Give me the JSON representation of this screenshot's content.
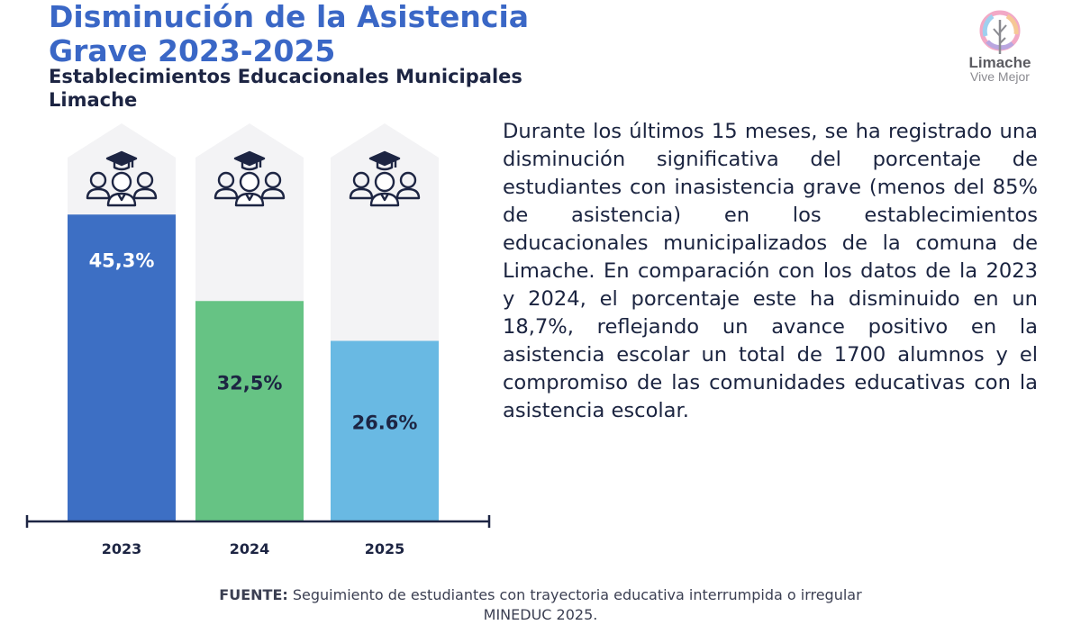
{
  "header": {
    "title_line1": "Disminución de la Asistencia",
    "title_line2": "Grave 2023-2025",
    "subtitle_line1": "Establecimientos Educacionales Municipales",
    "subtitle_line2": "Limache"
  },
  "logo": {
    "name": "Limache",
    "tagline": "Vive Mejor"
  },
  "colors": {
    "title": "#3a67c6",
    "bar_2023": "#3d6fc4",
    "bar_2024": "#66c384",
    "bar_2025": "#69b9e3",
    "arrow_bg": "#f3f3f5",
    "axis": "#1d2543"
  },
  "chart_data": {
    "type": "bar",
    "categories": [
      "2023",
      "2024",
      "2025"
    ],
    "values": [
      45.3,
      32.5,
      26.6
    ],
    "value_labels": [
      "45,3%",
      "32,5%",
      "26.6%"
    ],
    "unit": "%",
    "title": "",
    "xlabel": "",
    "ylabel": "",
    "icons": [
      "students-graduation-icon",
      "students-graduation-icon",
      "students-graduation-icon"
    ]
  },
  "body": {
    "paragraph": "Durante los últimos 15 meses, se ha registrado una disminución significativa del porcentaje de estudiantes con inasistencia grave (menos del 85% de asistencia) en los establecimientos educacionales municipalizados de la comuna de Limache. En comparación con los datos de la 2023 y 2024, el porcentaje este ha disminuido en un 18,7%, reflejando un avance positivo en la asistencia escolar un total de 1700 alumnos  y el compromiso de las comunidades educativas con la asistencia escolar."
  },
  "source": {
    "label": "FUENTE:",
    "text": " Seguimiento de estudiantes  con trayectoria educativa interrumpida o irregular",
    "text_line2": "MINEDUC 2025."
  }
}
